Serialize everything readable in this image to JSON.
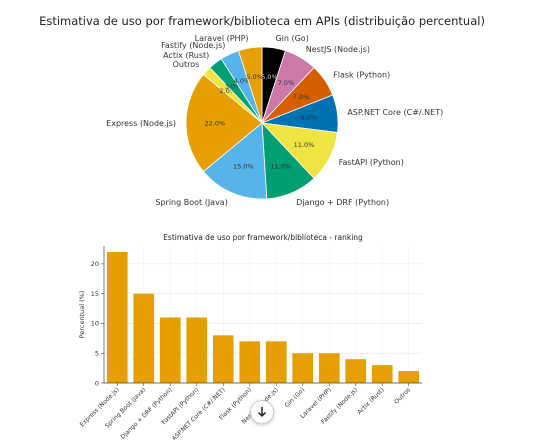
{
  "chart_data": [
    {
      "type": "pie",
      "title": "Estimativa de uso por framework/biblioteca em APIs (distribuição percentual)",
      "value_suffix": "%",
      "slices": [
        {
          "label": "Gin (Go)",
          "value": 5.0,
          "color": "#000000"
        },
        {
          "label": "NestJS (Node.js)",
          "value": 7.0,
          "color": "#cc79a7"
        },
        {
          "label": "Flask (Python)",
          "value": 7.0,
          "color": "#d55e00"
        },
        {
          "label": "ASP.NET Core (C#/.NET)",
          "value": 8.0,
          "color": "#0072b2"
        },
        {
          "label": "FastAPI (Python)",
          "value": 11.0,
          "color": "#f0e442"
        },
        {
          "label": "Django + DRF (Python)",
          "value": 11.0,
          "color": "#009e73"
        },
        {
          "label": "Spring Boot (Java)",
          "value": 15.0,
          "color": "#56b4e9"
        },
        {
          "label": "Express (Node.js)",
          "value": 22.0,
          "color": "#e69f00"
        },
        {
          "label": "Outros",
          "value": 2.0,
          "color": "#f0e442"
        },
        {
          "label": "Actix (Rust)",
          "value": 3.0,
          "color": "#009e73"
        },
        {
          "label": "Fastify (Node.js)",
          "value": 4.0,
          "color": "#56b4e9"
        },
        {
          "label": "Laravel (PHP)",
          "value": 5.0,
          "color": "#e69f00"
        }
      ]
    },
    {
      "type": "bar",
      "title": "Estimativa de uso por framework/biblioteca - ranking",
      "ylabel": "Percentual (%)",
      "xlabel": "",
      "ylim": [
        0,
        23
      ],
      "yticks": [
        0,
        5,
        10,
        15,
        20
      ],
      "grid": true,
      "bar_color": "#e69f00",
      "categories": [
        "Express (Node.js)",
        "Spring Boot (Java)",
        "Django + DRF (Python)",
        "FastAPI (Python)",
        "ASP.NET Core (C#/.NET)",
        "Flask (Python)",
        "NestJS (Node.js)",
        "Gin (Go)",
        "Laravel (PHP)",
        "Fastify (Node.js)",
        "Actix (Rust)",
        "Outros"
      ],
      "values": [
        22,
        15,
        11,
        11,
        8,
        7,
        7,
        5,
        5,
        4,
        3,
        2
      ]
    }
  ],
  "ui": {
    "scroll_icon": "arrow-down-icon"
  }
}
